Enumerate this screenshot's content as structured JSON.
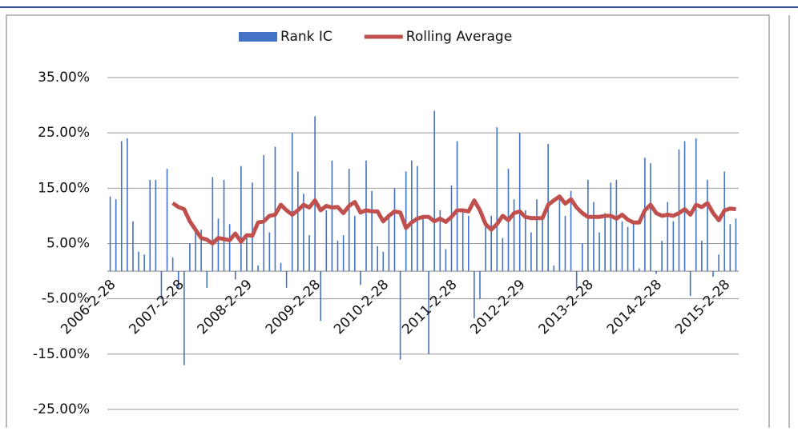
{
  "chart_data": {
    "type": "combo",
    "categories": [
      "2006-2-28",
      null,
      null,
      null,
      null,
      null,
      null,
      null,
      null,
      null,
      null,
      null,
      "2007-2-28",
      null,
      null,
      null,
      null,
      null,
      null,
      null,
      null,
      null,
      null,
      null,
      "2008-2-29",
      null,
      null,
      null,
      null,
      null,
      null,
      null,
      null,
      null,
      null,
      null,
      "2009-2-28",
      null,
      null,
      null,
      null,
      null,
      null,
      null,
      null,
      null,
      null,
      null,
      "2010-2-28",
      null,
      null,
      null,
      null,
      null,
      null,
      null,
      null,
      null,
      null,
      null,
      "2011-2-28",
      null,
      null,
      null,
      null,
      null,
      null,
      null,
      null,
      null,
      null,
      null,
      "2012-2-29",
      null,
      null,
      null,
      null,
      null,
      null,
      null,
      null,
      null,
      null,
      null,
      "2013-2-28",
      null,
      null,
      null,
      null,
      null,
      null,
      null,
      null,
      null,
      null,
      null,
      "2014-2-28",
      null,
      null,
      null,
      null,
      null,
      null,
      null,
      null,
      null,
      null,
      null,
      "2015-2-28",
      null,
      null
    ],
    "series": [
      {
        "name": "Rank IC",
        "type": "bar",
        "color": "#4472c4",
        "values": [
          13.5,
          13,
          23.5,
          24,
          9,
          3.5,
          3,
          16.5,
          16.5,
          -5,
          18.5,
          2.5,
          -3,
          -17,
          5,
          7,
          7.5,
          -3,
          17,
          9.5,
          16.5,
          8.5,
          -1.5,
          19,
          6,
          16,
          1,
          21,
          7,
          22.5,
          1.5,
          -3,
          25,
          18,
          14,
          6.5,
          28,
          -9,
          11,
          20,
          5.5,
          6.5,
          18.5,
          10,
          -2.5,
          20,
          14.5,
          4.5,
          3.5,
          10,
          15,
          -16,
          18,
          20,
          19,
          10,
          -15,
          29,
          11,
          4,
          15.5,
          23.5,
          11,
          10,
          -8.5,
          -5,
          8.5,
          10,
          26,
          6,
          18.5,
          13,
          25,
          11,
          7,
          13,
          10,
          23,
          1,
          13,
          10,
          14.5,
          -3,
          5,
          16.5,
          12.5,
          7,
          10.5,
          16,
          16.5,
          9,
          8,
          9,
          0.5,
          20.5,
          19.5,
          -0.5,
          5.5,
          12.5,
          9,
          22,
          23.5,
          -4.5,
          24,
          5.5,
          16.5,
          -1,
          3,
          18,
          8.5,
          9.5
        ]
      },
      {
        "name": "Rolling Average",
        "type": "line",
        "color": "#c0504d",
        "values": [
          null,
          null,
          null,
          null,
          null,
          null,
          null,
          null,
          null,
          null,
          null,
          12.3,
          11.6,
          11.2,
          9,
          7.5,
          6,
          5.7,
          5,
          6,
          5.8,
          5.6,
          6.8,
          5.3,
          6.5,
          6.4,
          8.8,
          9,
          10,
          10.2,
          12,
          11,
          10.2,
          11,
          12,
          11.5,
          12.8,
          11,
          11.8,
          11.5,
          11.6,
          10.5,
          11.8,
          12.5,
          10.6,
          11,
          10.8,
          10.8,
          9,
          10,
          10.8,
          10.6,
          7.8,
          8.8,
          9.5,
          9.8,
          9.8,
          9,
          9.5,
          8.9,
          9.8,
          11,
          11,
          10.8,
          12.8,
          11,
          8.5,
          7.5,
          8.5,
          10,
          9.2,
          10.5,
          10.8,
          9.8,
          9.6,
          9.6,
          9.6,
          12,
          12.8,
          13.5,
          12.2,
          13,
          11.5,
          10.5,
          9.8,
          9.8,
          9.8,
          10,
          10,
          9.5,
          10.2,
          9.3,
          8.8,
          8.8,
          11,
          12,
          10.5,
          10,
          10.2,
          10,
          10.5,
          11.2,
          10.2,
          12,
          11.6,
          12.3,
          10.5,
          9.2,
          11,
          11.3,
          11.2
        ]
      }
    ],
    "ylim": [
      -25,
      35
    ],
    "yticks": [
      {
        "value": 35,
        "label": "35.00%"
      },
      {
        "value": 25,
        "label": "25.00%"
      },
      {
        "value": 15,
        "label": "15.00%"
      },
      {
        "value": 5,
        "label": "5.00%"
      },
      {
        "value": -5,
        "label": "-5.00%"
      },
      {
        "value": -15,
        "label": "-15.00%"
      },
      {
        "value": -25,
        "label": "-25.00%"
      }
    ],
    "grid": true,
    "legend": "top"
  }
}
